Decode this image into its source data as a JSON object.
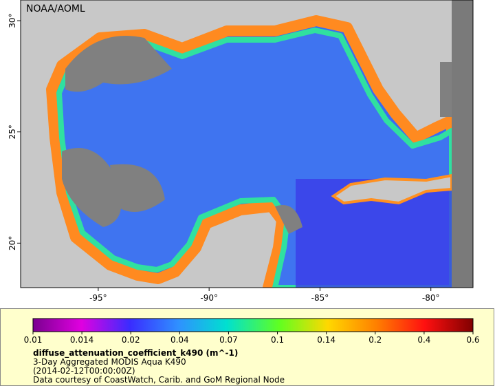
{
  "map": {
    "label": "NOAA/AOML",
    "lon_range": [
      -98.5,
      -78.1
    ],
    "lat_range": [
      18.0,
      30.93
    ],
    "lon_ticks": [
      {
        "value": -95,
        "label": "-95°"
      },
      {
        "value": -90,
        "label": "-90°"
      },
      {
        "value": -85,
        "label": "-85°"
      },
      {
        "value": -80,
        "label": "-80°"
      }
    ],
    "lat_ticks": [
      {
        "value": 20,
        "label": "20°"
      },
      {
        "value": 25,
        "label": "25°"
      },
      {
        "value": 30,
        "label": "30°"
      }
    ]
  },
  "colorbar": {
    "ticks": [
      0.01,
      0.014,
      0.02,
      0.04,
      0.07,
      0.1,
      0.14,
      0.2,
      0.4,
      0.6
    ],
    "title": "diffuse_attenuation_coefficient_k490 (m^-1)",
    "lines": [
      "3-Day Aggregated MODIS Aqua K490",
      "(2014-02-12T00:00:00Z)",
      "Data courtesy of CoastWatch, Carib. and GoM Regional Node"
    ]
  }
}
